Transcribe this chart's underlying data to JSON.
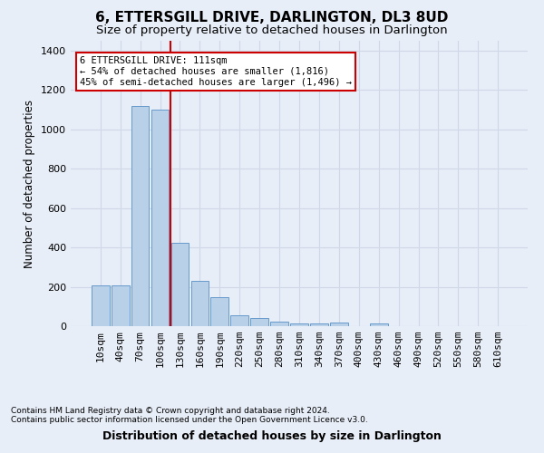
{
  "title": "6, ETTERSGILL DRIVE, DARLINGTON, DL3 8UD",
  "subtitle": "Size of property relative to detached houses in Darlington",
  "xlabel": "Distribution of detached houses by size in Darlington",
  "ylabel": "Number of detached properties",
  "categories": [
    "10sqm",
    "40sqm",
    "70sqm",
    "100sqm",
    "130sqm",
    "160sqm",
    "190sqm",
    "220sqm",
    "250sqm",
    "280sqm",
    "310sqm",
    "340sqm",
    "370sqm",
    "400sqm",
    "430sqm",
    "460sqm",
    "490sqm",
    "520sqm",
    "550sqm",
    "580sqm",
    "610sqm"
  ],
  "values": [
    207,
    207,
    1120,
    1100,
    425,
    230,
    148,
    57,
    40,
    25,
    12,
    12,
    18,
    0,
    12,
    0,
    0,
    0,
    0,
    0,
    0
  ],
  "bar_color": "#b8d0e8",
  "bar_edge_color": "#6699cc",
  "vline_x": 3.5,
  "vline_color": "#cc0000",
  "annotation_text": "6 ETTERSGILL DRIVE: 111sqm\n← 54% of detached houses are smaller (1,816)\n45% of semi-detached houses are larger (1,496) →",
  "annotation_box_color": "white",
  "annotation_box_edge_color": "#cc0000",
  "ylim": [
    0,
    1450
  ],
  "yticks": [
    0,
    200,
    400,
    600,
    800,
    1000,
    1200,
    1400
  ],
  "footer1": "Contains HM Land Registry data © Crown copyright and database right 2024.",
  "footer2": "Contains public sector information licensed under the Open Government Licence v3.0.",
  "bg_color": "#e8eef8",
  "grid_color": "#d0d8e8",
  "title_fontsize": 11,
  "subtitle_fontsize": 9.5,
  "xlabel_fontsize": 9,
  "ylabel_fontsize": 8.5,
  "tick_fontsize": 8,
  "footer_fontsize": 6.5
}
